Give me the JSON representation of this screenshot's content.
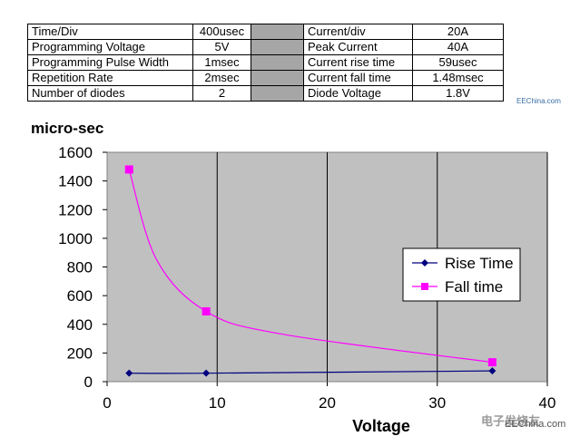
{
  "table": {
    "rows": [
      [
        "Time/Div",
        "400usec",
        "Current/div",
        "20A"
      ],
      [
        "Programming Voltage",
        "5V",
        "Peak Current",
        "40A"
      ],
      [
        "Programming Pulse Width",
        "1msec",
        "Current rise time",
        "59usec"
      ],
      [
        "Repetition Rate",
        "2msec",
        "Current fall time",
        "1.48msec"
      ],
      [
        "Number of diodes",
        "2",
        "Diode Voltage",
        "1.8V"
      ]
    ]
  },
  "watermarks": {
    "small": "EEChina.com",
    "big": "EEChina.com",
    "chinese": "电子发烧友"
  },
  "chart_data": {
    "type": "line",
    "title": "",
    "ylabel": "micro-sec",
    "xlabel": "Voltage",
    "xlim": [
      0,
      40
    ],
    "ylim": [
      0,
      1600
    ],
    "xticks": [
      0,
      10,
      20,
      30,
      40
    ],
    "yticks": [
      0,
      200,
      400,
      600,
      800,
      1000,
      1200,
      1400,
      1600
    ],
    "grid": "vertical",
    "legend_position": "right",
    "series": [
      {
        "name": "Rise Time",
        "color": "#000080",
        "marker": "diamond",
        "x": [
          2,
          9,
          35
        ],
        "y": [
          59,
          59,
          75
        ]
      },
      {
        "name": "Fall time",
        "color": "#ff00ff",
        "marker": "square",
        "x": [
          2,
          9,
          35
        ],
        "y": [
          1480,
          490,
          135
        ]
      }
    ],
    "plot_background": "#c0c0c0"
  }
}
